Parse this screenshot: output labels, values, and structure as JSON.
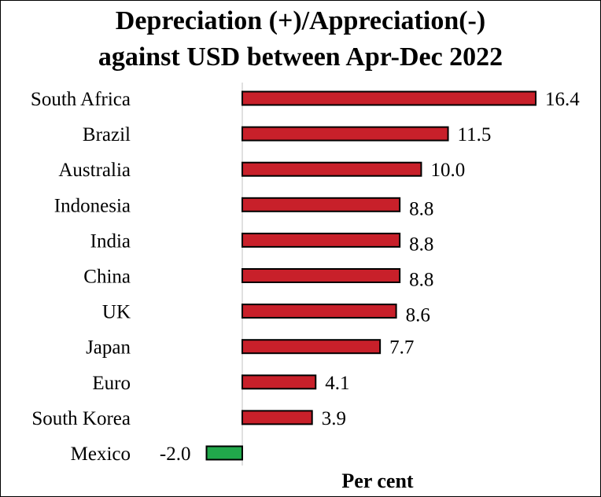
{
  "chart_data": {
    "type": "bar",
    "orientation": "horizontal",
    "title_line1": "Depreciation (+)/Appreciation(-)",
    "title_line2": "against USD between Apr-Dec 2022",
    "xlabel": "Per cent",
    "ylabel": "",
    "categories": [
      "South Africa",
      "Brazil",
      "Australia",
      "Indonesia",
      "India",
      "China",
      "UK",
      "Japan",
      "Euro",
      "South Korea",
      "Mexico"
    ],
    "values": [
      16.4,
      11.5,
      10.0,
      8.8,
      8.8,
      8.8,
      8.6,
      7.7,
      4.1,
      3.9,
      -2.0
    ],
    "value_labels": [
      "16.4",
      "11.5",
      "10.0",
      "8.8",
      "8.8",
      "8.8",
      "8.6",
      "7.7",
      "4.1",
      "3.9",
      "-2.0"
    ],
    "xlim": [
      -2.0,
      16.4
    ],
    "grid": false,
    "legend": false,
    "colors": {
      "positive": "#c8202a",
      "negative": "#21a84b",
      "outline": "#000000"
    }
  }
}
